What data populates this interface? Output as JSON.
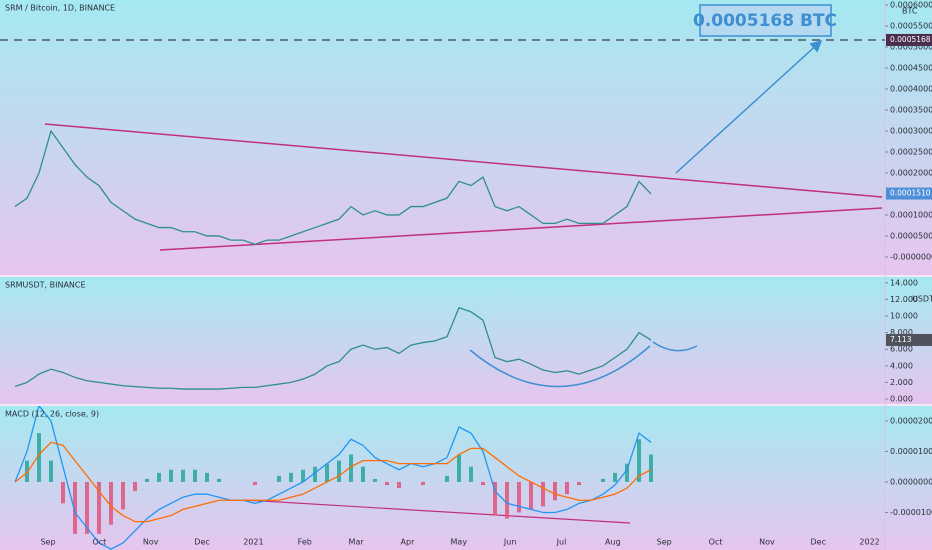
{
  "chart_data": [
    {
      "type": "line",
      "title": "SRM / Bitcoin, 1D, BINANCE",
      "unit": "BTC",
      "series": [
        {
          "color": "#2f8f86",
          "values": [
            0.00012,
            0.00014,
            0.0002,
            0.0003,
            0.00026,
            0.00022,
            0.00019,
            0.00017,
            0.00013,
            0.00011,
            9e-05,
            8e-05,
            7e-05,
            7e-05,
            6e-05,
            6e-05,
            5e-05,
            5e-05,
            4e-05,
            4e-05,
            3e-05,
            4e-05,
            4e-05,
            5e-05,
            6e-05,
            7e-05,
            8e-05,
            9e-05,
            0.00012,
            0.0001,
            0.00011,
            0.0001,
            0.0001,
            0.00012,
            0.00012,
            0.00013,
            0.00014,
            0.00018,
            0.00017,
            0.00019,
            0.00012,
            0.00011,
            0.00012,
            0.0001,
            8e-05,
            8e-05,
            9e-05,
            8e-05,
            8e-05,
            8e-05,
            0.0001,
            0.00012,
            0.00018,
            0.00015
          ]
        }
      ],
      "ylim": [
        -4.3e-05,
        0.000612
      ],
      "yticks": [
        {
          "value": 0,
          "label": "-0.0000000"
        },
        {
          "value": 5e-05,
          "label": "0.0000500"
        },
        {
          "value": 0.0001,
          "label": "0.0001000"
        },
        {
          "value": 0.0002,
          "label": "0.0002000"
        },
        {
          "value": 0.00025,
          "label": "0.0002500"
        },
        {
          "value": 0.0003,
          "label": "0.0003000"
        },
        {
          "value": 0.00035,
          "label": "0.0003500"
        },
        {
          "value": 0.0004,
          "label": "0.0004000"
        },
        {
          "value": 0.00045,
          "label": "0.0004500"
        },
        {
          "value": 0.0005,
          "label": "0.0005000"
        },
        {
          "value": 0.00055,
          "label": "0.0005500"
        },
        {
          "value": 0.0006,
          "label": "0.0006000"
        }
      ],
      "target": {
        "value": 0.0005168,
        "label": "0.0005168",
        "box_label": "0.0005168 BTC"
      },
      "last_price": {
        "value": 0.000151,
        "label": "0.0001510"
      }
    },
    {
      "type": "line",
      "title": "SRMUSDT, BINANCE",
      "unit": "USDT",
      "series": [
        {
          "color": "#2f8f86",
          "values": [
            1.5,
            2.0,
            3.0,
            3.6,
            3.2,
            2.6,
            2.2,
            2.0,
            1.8,
            1.6,
            1.5,
            1.4,
            1.3,
            1.3,
            1.2,
            1.2,
            1.2,
            1.2,
            1.3,
            1.4,
            1.4,
            1.6,
            1.8,
            2.0,
            2.4,
            3.0,
            4.0,
            4.5,
            6.0,
            6.5,
            6.0,
            6.2,
            5.5,
            6.5,
            6.8,
            7.0,
            7.5,
            11.0,
            10.5,
            9.5,
            5.0,
            4.5,
            4.8,
            4.2,
            3.5,
            3.2,
            3.4,
            3.0,
            3.5,
            4.0,
            5.0,
            6.0,
            8.0,
            7.1
          ]
        }
      ],
      "ylim": [
        -0.6,
        14.7
      ],
      "yticks": [
        {
          "value": 0,
          "label": "0.000"
        },
        {
          "value": 2,
          "label": "2.000"
        },
        {
          "value": 4,
          "label": "4.000"
        },
        {
          "value": 6,
          "label": "6.000"
        },
        {
          "value": 8,
          "label": "8.000"
        },
        {
          "value": 10,
          "label": "10.000"
        },
        {
          "value": 12,
          "label": "12.000"
        },
        {
          "value": 14,
          "label": "14.000"
        }
      ],
      "last_price": 7.113
    },
    {
      "type": "line",
      "title": "MACD (12, 26, close, 9)",
      "series": [
        {
          "type": "bar",
          "up_color": "#26a69a",
          "down_color": "#e0527a",
          "values": [
            0,
            7e-06,
            1.6e-05,
            7e-06,
            -7e-06,
            -1.7e-05,
            -1.7e-05,
            -1.7e-05,
            -1.4e-05,
            -9e-06,
            -3e-06,
            1e-06,
            3e-06,
            4e-06,
            4e-06,
            4e-06,
            3e-06,
            1e-06,
            0,
            0,
            -1e-06,
            0,
            2e-06,
            3e-06,
            4e-06,
            5e-06,
            6e-06,
            7e-06,
            9e-06,
            5e-06,
            1e-06,
            -1e-06,
            -2e-06,
            0,
            -1e-06,
            0,
            2e-06,
            9e-06,
            5e-06,
            -1e-06,
            -1.1e-05,
            -1.2e-05,
            -1e-05,
            -9e-06,
            -8e-06,
            -6e-06,
            -4e-06,
            -1e-06,
            0,
            1e-06,
            3e-06,
            6e-06,
            1.4e-05,
            9e-06
          ]
        },
        {
          "color": "#2196f3",
          "values": [
            0,
            1e-05,
            2.5e-05,
            2e-05,
            5e-06,
            -1e-05,
            -1.5e-05,
            -2e-05,
            -2.2e-05,
            -2e-05,
            -1.6e-05,
            -1.2e-05,
            -9e-06,
            -7e-06,
            -5e-06,
            -4e-06,
            -4e-06,
            -5e-06,
            -6e-06,
            -6e-06,
            -7e-06,
            -6e-06,
            -4e-06,
            -2e-06,
            0,
            3e-06,
            6e-06,
            9e-06,
            1.4e-05,
            1.2e-05,
            8e-06,
            6e-06,
            4e-06,
            6e-06,
            5e-06,
            6e-06,
            8e-06,
            1.8e-05,
            1.6e-05,
            1e-05,
            -3e-06,
            -7e-06,
            -8e-06,
            -9e-06,
            -1e-05,
            -1e-05,
            -9e-06,
            -7e-06,
            -6e-06,
            -4e-06,
            -1e-06,
            4e-06,
            1.6e-05,
            1.3e-05
          ]
        },
        {
          "color": "#ff6d00",
          "values": [
            0,
            3e-06,
            9e-06,
            1.3e-05,
            1.2e-05,
            7e-06,
            2e-06,
            -3e-06,
            -8e-06,
            -1.1e-05,
            -1.3e-05,
            -1.3e-05,
            -1.2e-05,
            -1.1e-05,
            -9e-06,
            -8e-06,
            -7e-06,
            -6e-06,
            -6e-06,
            -6e-06,
            -6e-06,
            -6e-06,
            -6e-06,
            -5e-06,
            -4e-06,
            -2e-06,
            0,
            2e-06,
            5e-06,
            7e-06,
            7e-06,
            7e-06,
            6e-06,
            6e-06,
            6e-06,
            6e-06,
            6e-06,
            9e-06,
            1.1e-05,
            1.1e-05,
            8e-06,
            5e-06,
            2e-06,
            0,
            -2e-06,
            -4e-06,
            -5e-06,
            -6e-06,
            -6e-06,
            -5e-06,
            -4e-06,
            -2e-06,
            2e-06,
            4e-06
          ]
        }
      ],
      "ylim": [
        -2.23e-05,
        2.49e-05
      ],
      "yticks": [
        {
          "value": -1e-05,
          "label": "-0.0000100"
        },
        {
          "value": 0,
          "label": "0.0000000"
        },
        {
          "value": 1e-05,
          "label": "0.0000100"
        },
        {
          "value": 2e-05,
          "label": "0.0000200"
        }
      ]
    }
  ],
  "x_axis": {
    "categories": [
      "Sep",
      "Oct",
      "Nov",
      "Dec",
      "2021",
      "Feb",
      "Mar",
      "Apr",
      "May",
      "Jun",
      "Jul",
      "Aug",
      "Sep",
      "Oct",
      "Nov",
      "Dec",
      "2022"
    ]
  }
}
